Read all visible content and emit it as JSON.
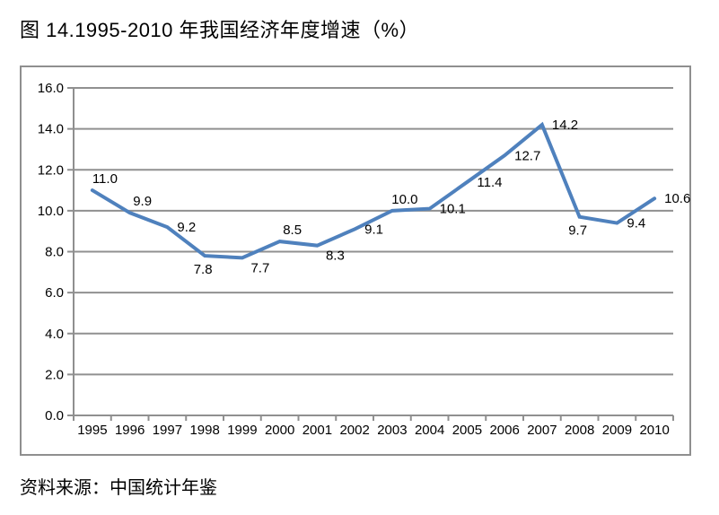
{
  "page": {
    "title": "图 14.1995-2010 年我国经济年度增速（%）",
    "source": "资料来源：中国统计年鉴"
  },
  "chart_data": {
    "type": "line",
    "title": "图 14.1995-2010 年我国经济年度增速（%）",
    "categories": [
      "1995",
      "1996",
      "1997",
      "1998",
      "1999",
      "2000",
      "2001",
      "2002",
      "2003",
      "2004",
      "2005",
      "2006",
      "2007",
      "2008",
      "2009",
      "2010"
    ],
    "values": [
      11.0,
      9.9,
      9.2,
      7.8,
      7.7,
      8.5,
      8.3,
      9.1,
      10.0,
      10.1,
      11.4,
      12.7,
      14.2,
      9.7,
      9.4,
      10.6
    ],
    "data_labels": [
      "11.0",
      "9.9",
      "9.2",
      "7.8",
      "7.7",
      "8.5",
      "8.3",
      "9.1",
      "10.0",
      "10.1",
      "11.4",
      "12.7",
      "14.2",
      "9.7",
      "9.4",
      "10.6"
    ],
    "label_positions": [
      "above-right",
      "above-right",
      "right",
      "below",
      "below-right",
      "above-right",
      "below-right",
      "right",
      "above-right",
      "right",
      "right",
      "right",
      "right",
      "below",
      "right",
      "right"
    ],
    "xlabel": "",
    "ylabel": "",
    "ylim": [
      0,
      16
    ],
    "ytick_step": 2,
    "ytick_labels": [
      "0.0",
      "2.0",
      "4.0",
      "6.0",
      "8.0",
      "10.0",
      "12.0",
      "14.0",
      "16.0"
    ],
    "grid": true,
    "legend_position": "none",
    "line_color": "#4f81bd",
    "grid_color": "#909090",
    "axis_color": "#8f8f8f",
    "text_color": "#000000"
  }
}
